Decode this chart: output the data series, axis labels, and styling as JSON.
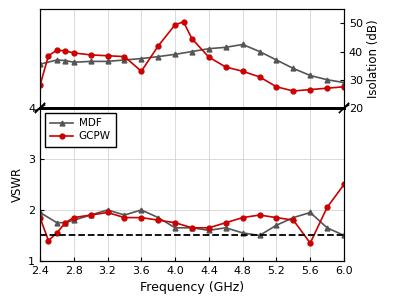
{
  "freq_mdf_isolation": [
    2.4,
    2.6,
    2.7,
    2.8,
    3.0,
    3.2,
    3.4,
    3.6,
    3.8,
    4.0,
    4.2,
    4.4,
    4.6,
    4.8,
    5.0,
    5.2,
    5.4,
    5.6,
    5.8,
    6.0
  ],
  "mdf_isolation": [
    35.5,
    37.0,
    36.8,
    36.2,
    36.5,
    36.5,
    37.0,
    37.5,
    38.2,
    39.0,
    40.0,
    41.0,
    41.5,
    42.5,
    40.0,
    37.0,
    34.0,
    31.5,
    30.0,
    29.0
  ],
  "freq_gcpw_isolation": [
    2.4,
    2.5,
    2.6,
    2.7,
    2.8,
    3.0,
    3.2,
    3.4,
    3.6,
    3.8,
    4.0,
    4.1,
    4.2,
    4.4,
    4.6,
    4.8,
    5.0,
    5.2,
    5.4,
    5.6,
    5.8,
    6.0
  ],
  "gcpw_isolation": [
    28.0,
    38.5,
    40.5,
    40.2,
    39.5,
    38.8,
    38.5,
    38.2,
    33.0,
    42.0,
    49.5,
    50.5,
    44.5,
    38.0,
    34.5,
    33.0,
    31.0,
    27.5,
    26.0,
    26.5,
    27.0,
    27.5
  ],
  "freq_mdf_vswr": [
    2.4,
    2.6,
    2.7,
    2.8,
    3.0,
    3.2,
    3.4,
    3.6,
    3.8,
    4.0,
    4.2,
    4.4,
    4.6,
    4.8,
    5.0,
    5.2,
    5.4,
    5.6,
    5.8,
    6.0
  ],
  "mdf_vswr": [
    1.95,
    1.75,
    1.75,
    1.8,
    1.9,
    2.0,
    1.9,
    2.0,
    1.85,
    1.65,
    1.65,
    1.6,
    1.65,
    1.55,
    1.5,
    1.7,
    1.85,
    1.95,
    1.65,
    1.5
  ],
  "freq_gcpw_vswr": [
    2.4,
    2.5,
    2.6,
    2.7,
    2.8,
    3.0,
    3.2,
    3.4,
    3.6,
    3.8,
    4.0,
    4.2,
    4.4,
    4.6,
    4.8,
    5.0,
    5.2,
    5.4,
    5.6,
    5.8,
    6.0
  ],
  "gcpw_vswr": [
    1.85,
    1.4,
    1.55,
    1.75,
    1.85,
    1.9,
    1.95,
    1.85,
    1.85,
    1.8,
    1.75,
    1.65,
    1.65,
    1.75,
    1.85,
    1.9,
    1.85,
    1.8,
    1.35,
    2.05,
    2.5
  ],
  "mdf_color": "#555555",
  "gcpw_color": "#cc0000",
  "dashed_line_y": 1.5,
  "xlabel": "Frequency (GHz)",
  "ylabel_left": "VSWR",
  "ylabel_right": "Isolation (dB)",
  "xtick_labels": [
    "2.4",
    "2.8",
    "3.2",
    "3.6",
    "4.0",
    "4.4",
    "4.8",
    "5.2",
    "5.6",
    "6.0"
  ],
  "xticks": [
    2.4,
    2.8,
    3.2,
    3.6,
    4.0,
    4.4,
    4.8,
    5.2,
    5.6,
    6.0
  ],
  "yticks_vswr": [
    1,
    2,
    3,
    4
  ],
  "yticks_isolation": [
    20,
    30,
    40,
    50
  ],
  "xlim": [
    2.4,
    6.0
  ],
  "vswr_ylim": [
    1,
    4
  ],
  "isolation_ylim": [
    20,
    55
  ],
  "isolation_display_ylim": [
    20,
    55
  ],
  "background_color": "#ffffff",
  "grid_color": "#cccccc",
  "height_ratio_top": 1.0,
  "height_ratio_bot": 1.55
}
